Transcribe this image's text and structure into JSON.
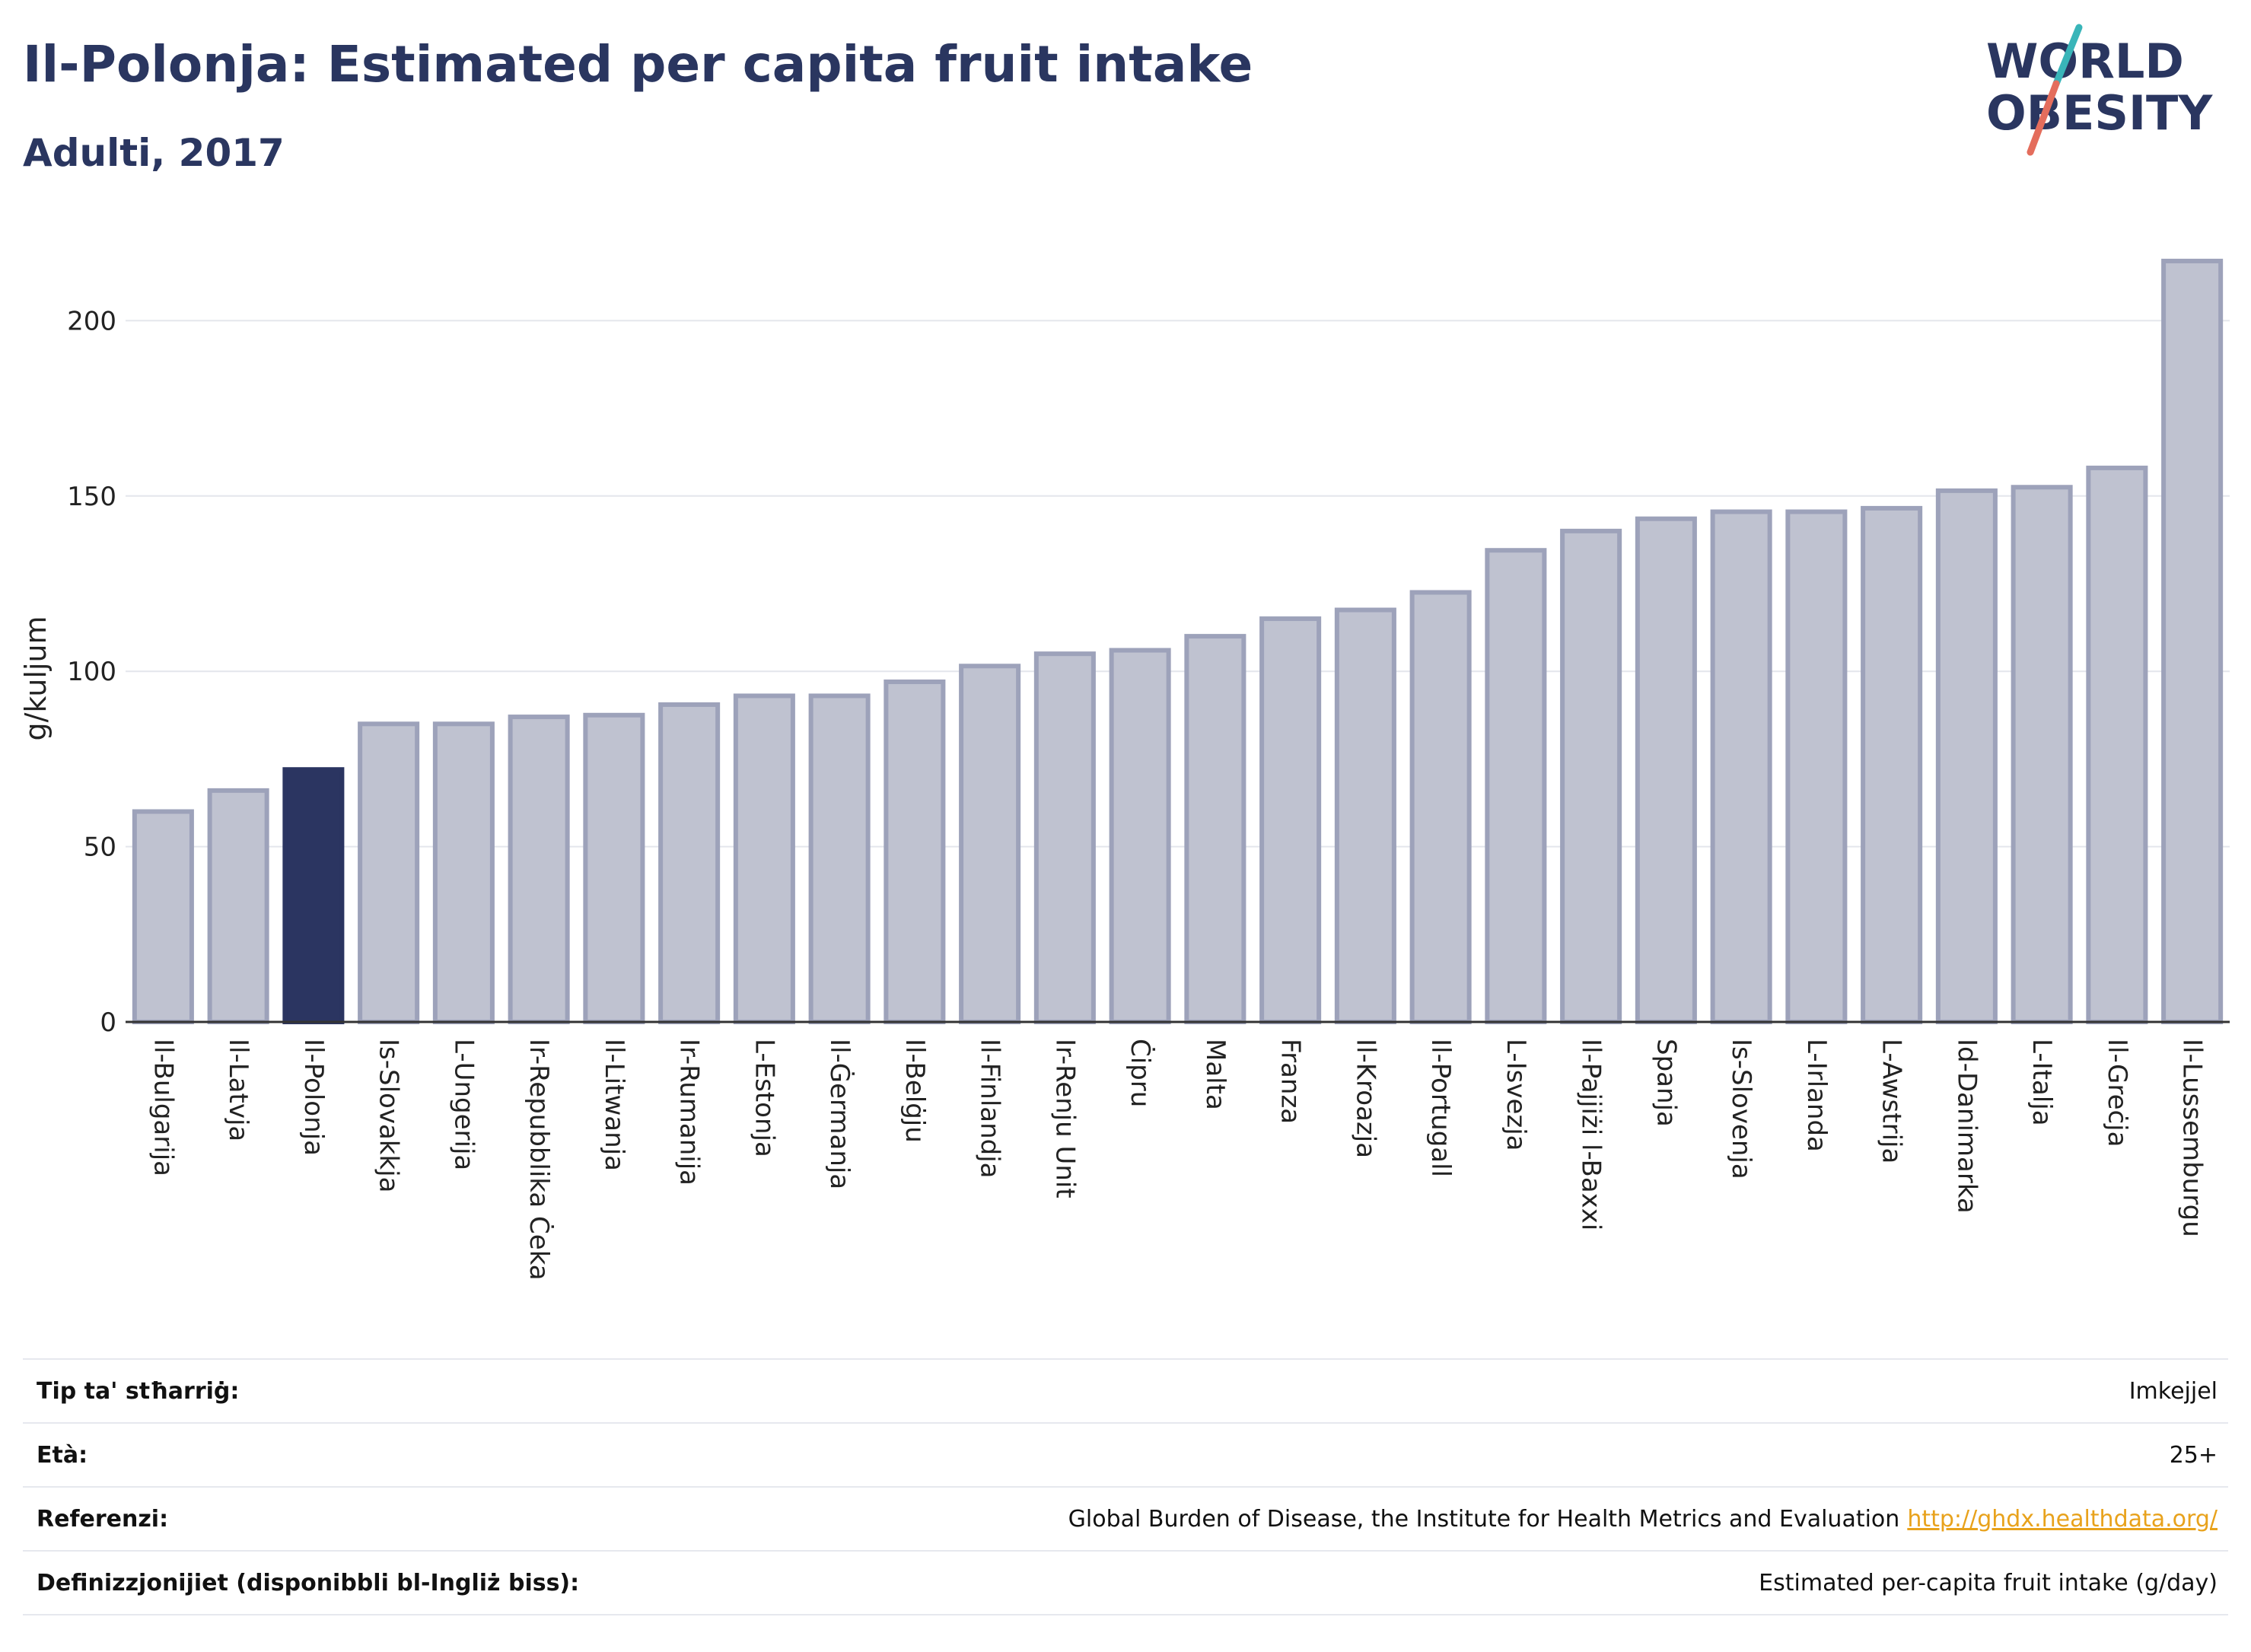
{
  "title": "Il-Polonja: Estimated per capita fruit intake",
  "subtitle": "Adulti, 2017",
  "logo": {
    "line1": "WORLD",
    "line2": "OBESITY"
  },
  "colors": {
    "highlight": "#2b3561",
    "bar": "#bfc2d0",
    "bar_stroke": "#9da2ba",
    "text": "#2a3660",
    "link": "#e8a21c",
    "logo_slash_teal": "#39b5b9",
    "logo_slash_red": "#e46d5c"
  },
  "chart_data": {
    "type": "bar",
    "categories": [
      "Il-Bulgarija",
      "Il-Latvja",
      "Il-Polonja",
      "Is-Slovakkja",
      "L-Ungerija",
      "Ir-Repubblika Ċeka",
      "Il-Litwanja",
      "Ir-Rumanija",
      "L-Estonja",
      "Il-Ġermanja",
      "Il-Belġju",
      "Il-Finlandja",
      "Ir-Renju Unit",
      "Ċipru",
      "Malta",
      "Franza",
      "Il-Kroazja",
      "Il-Portugall",
      "L-Isvezja",
      "Il-Pajjiżi l-Baxxi",
      "Spanja",
      "Is-Slovenja",
      "L-Irlanda",
      "L-Awstrija",
      "Id-Danimarka",
      "L-Italja",
      "Il-Greċja",
      "Il-Lussemburgu"
    ],
    "values": [
      60,
      66,
      72,
      85,
      85,
      87,
      87.5,
      90.5,
      93,
      93,
      97,
      101.5,
      105,
      106,
      110,
      115,
      117.5,
      122.5,
      134.5,
      140,
      143.5,
      145.5,
      145.5,
      146.5,
      151.5,
      152.5,
      158,
      217
    ],
    "highlight": "Il-Polonja",
    "ylabel": "g/kuljum",
    "ylim": [
      0,
      222
    ],
    "yticks": [
      0,
      50,
      100,
      150,
      200
    ],
    "grid": true
  },
  "info": [
    {
      "key": "Tip ta' stħarriġ:",
      "value": "Imkejjel"
    },
    {
      "key": "Età:",
      "value": "25+"
    },
    {
      "key": "Referenzi:",
      "value": "Global Burden of Disease, the Institute for Health Metrics and Evaluation",
      "link": "http://ghdx.healthdata.org/"
    },
    {
      "key": "Definizzjonijiet (disponibbli bl-Ingliż biss):",
      "value": "Estimated per-capita fruit intake (g/day)"
    }
  ]
}
